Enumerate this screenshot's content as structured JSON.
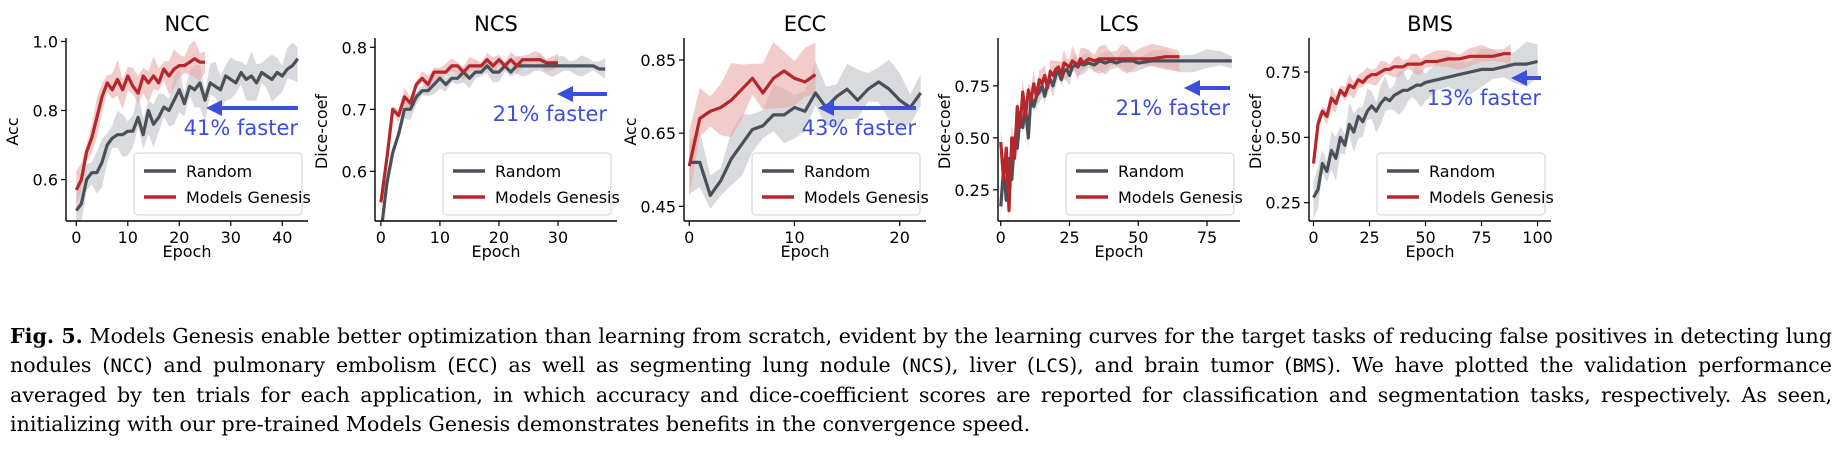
{
  "colors": {
    "random": "#4a5059",
    "genesis": "#b5272b",
    "arrow": "#3b4fdc",
    "random_band": "#c9cbcf",
    "genesis_band": "#e8aaa8"
  },
  "legend": {
    "random": "Random",
    "genesis": "Models Genesis"
  },
  "caption": {
    "label": "Fig. 5.",
    "segments": [
      {
        "t": " Models Genesis enable better optimization than learning from scratch, evident by the learning curves for the target tasks of reducing false positives in detecting lung nodules (",
        "mono": false
      },
      {
        "t": "NCC",
        "mono": true
      },
      {
        "t": ") and pulmonary embolism (",
        "mono": false
      },
      {
        "t": "ECC",
        "mono": true
      },
      {
        "t": ") as well as segmenting lung nodule (",
        "mono": false
      },
      {
        "t": "NCS",
        "mono": true
      },
      {
        "t": "), liver (",
        "mono": false
      },
      {
        "t": "LCS",
        "mono": true
      },
      {
        "t": "), and brain tumor (",
        "mono": false
      },
      {
        "t": "BMS",
        "mono": true
      },
      {
        "t": "). We have plotted the validation performance averaged by ten trials for each application, in which accuracy and dice-coefficient scores are reported for classification and segmentation tasks, respectively. As seen, initializing with our pre-trained Models Genesis demonstrates benefits in the convergence speed.",
        "mono": false
      }
    ]
  },
  "chart_data": [
    {
      "type": "line",
      "title": "NCC",
      "xlabel": "Epoch",
      "ylabel": "Acc",
      "xlim": [
        -2,
        45
      ],
      "ylim": [
        0.48,
        1.01
      ],
      "xticks": [
        0,
        10,
        20,
        30,
        40
      ],
      "yticks": [
        0.6,
        0.8,
        1.0
      ],
      "ytick_labels": [
        "0.6",
        "0.8",
        "1.0"
      ],
      "annotation": "41% faster",
      "legend_position": "lower-right",
      "series": [
        {
          "name": "Random",
          "x": [
            0,
            1,
            2,
            3,
            4,
            5,
            6,
            7,
            8,
            9,
            10,
            11,
            12,
            13,
            14,
            15,
            16,
            17,
            18,
            19,
            20,
            21,
            22,
            23,
            24,
            25,
            26,
            27,
            28,
            29,
            30,
            31,
            32,
            33,
            34,
            35,
            36,
            37,
            38,
            39,
            40,
            41,
            42,
            43
          ],
          "y": [
            0.51,
            0.53,
            0.6,
            0.62,
            0.62,
            0.65,
            0.7,
            0.72,
            0.73,
            0.73,
            0.74,
            0.74,
            0.78,
            0.73,
            0.8,
            0.76,
            0.78,
            0.81,
            0.8,
            0.83,
            0.86,
            0.82,
            0.87,
            0.86,
            0.88,
            0.83,
            0.88,
            0.87,
            0.86,
            0.9,
            0.89,
            0.88,
            0.91,
            0.89,
            0.9,
            0.88,
            0.91,
            0.9,
            0.89,
            0.91,
            0.9,
            0.92,
            0.93,
            0.95
          ],
          "band": 0.05
        },
        {
          "name": "Models Genesis",
          "x": [
            0,
            1,
            2,
            3,
            4,
            5,
            6,
            7,
            8,
            9,
            10,
            11,
            12,
            13,
            14,
            15,
            16,
            17,
            18,
            19,
            20,
            21,
            22,
            23,
            24,
            25
          ],
          "y": [
            0.57,
            0.6,
            0.68,
            0.72,
            0.78,
            0.84,
            0.88,
            0.86,
            0.89,
            0.86,
            0.9,
            0.87,
            0.85,
            0.9,
            0.88,
            0.9,
            0.88,
            0.92,
            0.9,
            0.92,
            0.93,
            0.93,
            0.94,
            0.95,
            0.94,
            0.94
          ],
          "band": 0.04
        }
      ]
    },
    {
      "type": "line",
      "title": "NCS",
      "xlabel": "Epoch",
      "ylabel": "Dice-coef",
      "xlim": [
        -1,
        40
      ],
      "ylim": [
        0.52,
        0.815
      ],
      "xticks": [
        0,
        10,
        20,
        30
      ],
      "yticks": [
        0.6,
        0.7,
        0.8
      ],
      "ytick_labels": [
        "0.6",
        "0.7",
        "0.8"
      ],
      "annotation": "21% faster",
      "legend_position": "lower-right",
      "series": [
        {
          "name": "Random",
          "x": [
            0,
            1,
            2,
            3,
            4,
            5,
            6,
            7,
            8,
            9,
            10,
            11,
            12,
            13,
            14,
            15,
            16,
            17,
            18,
            19,
            20,
            21,
            22,
            23,
            24,
            25,
            26,
            27,
            28,
            29,
            30,
            31,
            32,
            33,
            34,
            35,
            36,
            37,
            38
          ],
          "y": [
            0.5,
            0.58,
            0.63,
            0.66,
            0.7,
            0.7,
            0.72,
            0.73,
            0.73,
            0.74,
            0.75,
            0.74,
            0.75,
            0.75,
            0.76,
            0.75,
            0.76,
            0.76,
            0.77,
            0.76,
            0.76,
            0.77,
            0.76,
            0.77,
            0.77,
            0.77,
            0.77,
            0.77,
            0.77,
            0.77,
            0.77,
            0.77,
            0.77,
            0.77,
            0.77,
            0.77,
            0.77,
            0.765,
            0.765
          ],
          "band": 0.012
        },
        {
          "name": "Models Genesis",
          "x": [
            0,
            1,
            2,
            3,
            4,
            5,
            6,
            7,
            8,
            9,
            10,
            11,
            12,
            13,
            14,
            15,
            16,
            17,
            18,
            19,
            20,
            21,
            22,
            23,
            24,
            25,
            26,
            27,
            28,
            29,
            30
          ],
          "y": [
            0.55,
            0.62,
            0.7,
            0.69,
            0.72,
            0.71,
            0.74,
            0.75,
            0.74,
            0.76,
            0.76,
            0.76,
            0.77,
            0.77,
            0.76,
            0.77,
            0.77,
            0.77,
            0.78,
            0.77,
            0.78,
            0.77,
            0.78,
            0.77,
            0.78,
            0.78,
            0.78,
            0.78,
            0.775,
            0.775,
            0.775
          ],
          "band": 0.01
        }
      ]
    },
    {
      "type": "line",
      "title": "ECC",
      "xlabel": "Epoch",
      "ylabel": "Acc",
      "xlim": [
        -0.5,
        22.5
      ],
      "ylim": [
        0.41,
        0.91
      ],
      "xticks": [
        0,
        10,
        20
      ],
      "yticks": [
        0.45,
        0.65,
        0.85
      ],
      "ytick_labels": [
        "0.45",
        "0.65",
        "0.85"
      ],
      "annotation": "43% faster",
      "legend_position": "lower-right",
      "series": [
        {
          "name": "Random",
          "x": [
            0,
            1,
            2,
            3,
            4,
            5,
            6,
            7,
            8,
            9,
            10,
            11,
            12,
            13,
            14,
            15,
            16,
            17,
            18,
            19,
            20,
            21,
            22
          ],
          "y": [
            0.57,
            0.57,
            0.48,
            0.52,
            0.58,
            0.62,
            0.66,
            0.67,
            0.7,
            0.7,
            0.72,
            0.71,
            0.76,
            0.72,
            0.75,
            0.77,
            0.74,
            0.77,
            0.79,
            0.77,
            0.74,
            0.72,
            0.76
          ],
          "band": 0.06
        },
        {
          "name": "Models Genesis",
          "x": [
            0,
            1,
            2,
            3,
            4,
            5,
            6,
            7,
            8,
            9,
            10,
            11,
            12
          ],
          "y": [
            0.56,
            0.69,
            0.71,
            0.72,
            0.74,
            0.77,
            0.8,
            0.76,
            0.8,
            0.82,
            0.8,
            0.79,
            0.81
          ],
          "band": 0.07
        }
      ]
    },
    {
      "type": "line",
      "title": "LCS",
      "xlabel": "Epoch",
      "ylabel": "Dice-coef",
      "xlim": [
        -1,
        87
      ],
      "ylim": [
        0.1,
        0.98
      ],
      "xticks": [
        0,
        25,
        50,
        75
      ],
      "yticks": [
        0.25,
        0.5,
        0.75
      ],
      "ytick_labels": [
        "0.25",
        "0.50",
        "0.75"
      ],
      "annotation": "21% faster",
      "legend_position": "lower-right",
      "series": [
        {
          "name": "Random",
          "x": [
            0,
            1,
            2,
            3,
            4,
            5,
            6,
            7,
            8,
            9,
            10,
            11,
            12,
            13,
            14,
            15,
            16,
            17,
            18,
            19,
            20,
            21,
            22,
            23,
            24,
            25,
            26,
            27,
            28,
            29,
            30,
            32,
            34,
            36,
            38,
            40,
            42,
            44,
            46,
            48,
            50,
            55,
            60,
            65,
            70,
            75,
            80,
            84
          ],
          "y": [
            0.17,
            0.35,
            0.2,
            0.4,
            0.3,
            0.5,
            0.45,
            0.6,
            0.55,
            0.65,
            0.5,
            0.7,
            0.65,
            0.7,
            0.72,
            0.75,
            0.7,
            0.76,
            0.78,
            0.75,
            0.8,
            0.82,
            0.78,
            0.82,
            0.83,
            0.8,
            0.84,
            0.85,
            0.84,
            0.86,
            0.85,
            0.86,
            0.85,
            0.87,
            0.86,
            0.87,
            0.86,
            0.87,
            0.87,
            0.87,
            0.86,
            0.87,
            0.87,
            0.87,
            0.87,
            0.87,
            0.87,
            0.87
          ],
          "band": 0.04
        },
        {
          "name": "Models Genesis",
          "x": [
            0,
            1,
            2,
            3,
            4,
            5,
            6,
            7,
            8,
            9,
            10,
            11,
            12,
            13,
            14,
            15,
            16,
            17,
            18,
            19,
            20,
            21,
            22,
            23,
            24,
            25,
            26,
            27,
            28,
            29,
            30,
            32,
            34,
            36,
            38,
            40,
            42,
            44,
            46,
            48,
            50,
            55,
            60,
            65
          ],
          "y": [
            0.48,
            0.3,
            0.45,
            0.15,
            0.5,
            0.4,
            0.65,
            0.55,
            0.72,
            0.6,
            0.73,
            0.68,
            0.76,
            0.7,
            0.78,
            0.76,
            0.8,
            0.74,
            0.82,
            0.8,
            0.83,
            0.84,
            0.8,
            0.86,
            0.85,
            0.84,
            0.87,
            0.86,
            0.85,
            0.88,
            0.86,
            0.88,
            0.87,
            0.88,
            0.88,
            0.88,
            0.88,
            0.88,
            0.88,
            0.88,
            0.88,
            0.88,
            0.89,
            0.89
          ],
          "band": 0.05
        }
      ]
    },
    {
      "type": "line",
      "title": "BMS",
      "xlabel": "Epoch",
      "ylabel": "Dice-coef",
      "xlim": [
        -2,
        106
      ],
      "ylim": [
        0.18,
        0.88
      ],
      "xticks": [
        0,
        25,
        50,
        75,
        100
      ],
      "yticks": [
        0.25,
        0.5,
        0.75
      ],
      "ytick_labels": [
        "0.25",
        "0.50",
        "0.75"
      ],
      "annotation": "13% faster",
      "legend_position": "lower-right",
      "series": [
        {
          "name": "Random",
          "x": [
            0,
            2,
            4,
            6,
            8,
            10,
            12,
            14,
            16,
            18,
            20,
            22,
            24,
            26,
            28,
            30,
            32,
            34,
            36,
            38,
            40,
            42,
            44,
            46,
            48,
            50,
            55,
            60,
            65,
            70,
            75,
            80,
            85,
            90,
            95,
            100
          ],
          "y": [
            0.27,
            0.3,
            0.4,
            0.37,
            0.45,
            0.42,
            0.5,
            0.47,
            0.55,
            0.52,
            0.58,
            0.56,
            0.6,
            0.62,
            0.6,
            0.63,
            0.65,
            0.64,
            0.66,
            0.67,
            0.68,
            0.68,
            0.69,
            0.7,
            0.7,
            0.71,
            0.72,
            0.73,
            0.74,
            0.75,
            0.76,
            0.76,
            0.77,
            0.78,
            0.78,
            0.79
          ],
          "band": 0.06
        },
        {
          "name": "Models Genesis",
          "x": [
            0,
            2,
            4,
            6,
            8,
            10,
            12,
            14,
            16,
            18,
            20,
            22,
            24,
            26,
            28,
            30,
            32,
            34,
            36,
            38,
            40,
            42,
            44,
            46,
            48,
            50,
            55,
            60,
            65,
            70,
            75,
            80,
            85,
            88
          ],
          "y": [
            0.4,
            0.55,
            0.6,
            0.58,
            0.65,
            0.63,
            0.68,
            0.66,
            0.7,
            0.69,
            0.72,
            0.71,
            0.73,
            0.74,
            0.74,
            0.75,
            0.76,
            0.76,
            0.77,
            0.77,
            0.77,
            0.78,
            0.78,
            0.78,
            0.78,
            0.79,
            0.79,
            0.8,
            0.8,
            0.81,
            0.81,
            0.81,
            0.82,
            0.82
          ],
          "band": 0.03
        }
      ]
    }
  ]
}
